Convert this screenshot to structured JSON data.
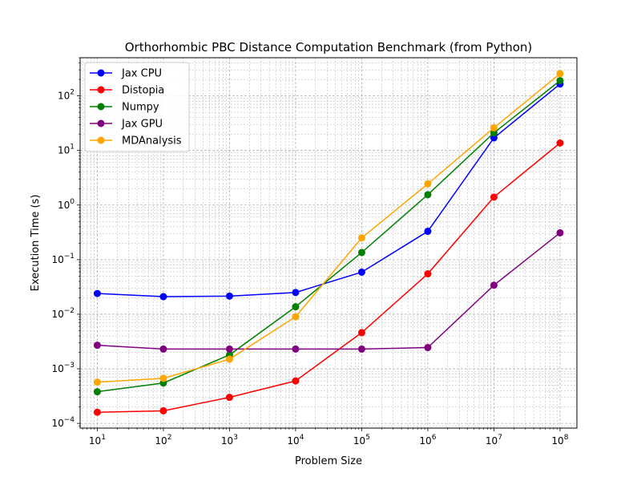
{
  "chart_data": {
    "type": "line",
    "title": "Orthorhombic PBC Distance Computation Benchmark (from Python)",
    "xlabel": "Problem Size",
    "ylabel": "Execution Time (s)",
    "xscale": "log",
    "yscale": "log",
    "xlim": [
      5.5,
      180000000.0
    ],
    "ylim": [
      8.2e-05,
      500
    ],
    "grid": true,
    "legend_position": "top-left",
    "x": [
      10,
      100,
      1000,
      10000,
      100000,
      1000000,
      10000000,
      100000000
    ],
    "x_tick_labels": [
      "10^1",
      "10^2",
      "10^3",
      "10^4",
      "10^5",
      "10^6",
      "10^7",
      "10^8"
    ],
    "y_tick_values": [
      0.0001,
      0.001,
      0.01,
      0.1,
      1,
      10,
      100
    ],
    "y_tick_labels": [
      "10^-4",
      "10^-3",
      "10^-2",
      "10^-1",
      "10^0",
      "10^1",
      "10^2"
    ],
    "series": [
      {
        "name": "Jax CPU",
        "color": "#0000ff",
        "values": [
          0.024,
          0.021,
          0.0215,
          0.025,
          0.059,
          0.33,
          17,
          165
        ]
      },
      {
        "name": "Distopia",
        "color": "#ff0000",
        "values": [
          0.00016,
          0.00017,
          0.0003,
          0.0006,
          0.0046,
          0.055,
          1.4,
          13.7
        ]
      },
      {
        "name": "Numpy",
        "color": "#008000",
        "values": [
          0.00038,
          0.00055,
          0.0018,
          0.0137,
          0.135,
          1.55,
          21,
          190
        ]
      },
      {
        "name": "Jax GPU",
        "color": "#800080",
        "values": [
          0.0027,
          0.0023,
          0.0023,
          0.0023,
          0.0023,
          0.00245,
          0.034,
          0.31
        ]
      },
      {
        "name": "MDAnalysis",
        "color": "#ffa500",
        "values": [
          0.00057,
          0.00067,
          0.0015,
          0.009,
          0.25,
          2.45,
          26,
          255
        ]
      }
    ]
  }
}
